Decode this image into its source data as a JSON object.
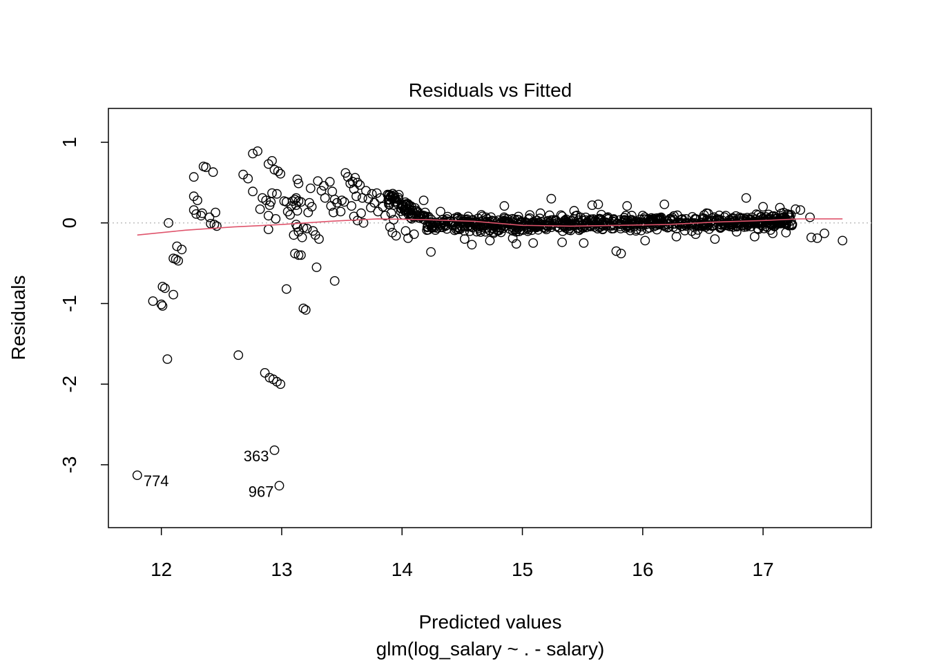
{
  "chart_data": {
    "type": "scatter",
    "title": "Residuals vs Fitted",
    "xlabel": "Predicted values",
    "xlabel_sub": "glm(log_salary ~ . - salary)",
    "ylabel": "Residuals",
    "xlim": [
      11.56,
      17.9
    ],
    "ylim": [
      -3.78,
      1.42
    ],
    "x_ticks": [
      12,
      13,
      14,
      15,
      16,
      17
    ],
    "x_tick_labels": [
      "12",
      "13",
      "14",
      "15",
      "16",
      "17"
    ],
    "y_ticks": [
      -3,
      -2,
      -1,
      0,
      1
    ],
    "y_tick_labels": [
      "-3",
      "-2",
      "-1",
      "0",
      "1"
    ],
    "reference_line_y": 0,
    "colors": {
      "points": "#000000",
      "smooth": "#DF536B",
      "reference": "#BEBEBE"
    },
    "points": [
      [
        11.8,
        -3.13
      ],
      [
        12.94,
        -2.82
      ],
      [
        12.98,
        -3.26
      ],
      [
        11.93,
        -0.97
      ],
      [
        12.0,
        -1.01
      ],
      [
        12.01,
        -1.03
      ],
      [
        12.01,
        -0.79
      ],
      [
        12.03,
        -0.81
      ],
      [
        12.1,
        -0.89
      ],
      [
        12.05,
        -1.69
      ],
      [
        12.06,
        0.0
      ],
      [
        12.1,
        -0.44
      ],
      [
        12.12,
        -0.45
      ],
      [
        12.14,
        -0.47
      ],
      [
        12.13,
        -0.29
      ],
      [
        12.17,
        -0.33
      ],
      [
        12.27,
        0.57
      ],
      [
        12.27,
        0.33
      ],
      [
        12.27,
        0.16
      ],
      [
        12.3,
        0.28
      ],
      [
        12.29,
        0.11
      ],
      [
        12.33,
        0.09
      ],
      [
        12.35,
        0.7
      ],
      [
        12.37,
        0.69
      ],
      [
        12.34,
        0.12
      ],
      [
        12.4,
        0.07
      ],
      [
        12.41,
        -0.01
      ],
      [
        12.43,
        0.63
      ],
      [
        12.45,
        0.13
      ],
      [
        12.44,
        -0.02
      ],
      [
        12.46,
        -0.04
      ],
      [
        12.64,
        -1.64
      ],
      [
        12.68,
        0.6
      ],
      [
        12.72,
        0.55
      ],
      [
        12.76,
        0.86
      ],
      [
        12.8,
        0.89
      ],
      [
        12.76,
        0.39
      ],
      [
        12.82,
        0.17
      ],
      [
        12.84,
        0.31
      ],
      [
        12.87,
        0.28
      ],
      [
        12.86,
        -1.86
      ],
      [
        12.89,
        0.73
      ],
      [
        12.91,
        0.26
      ],
      [
        12.9,
        -1.92
      ],
      [
        12.93,
        -1.94
      ],
      [
        12.96,
        -1.97
      ],
      [
        12.99,
        -2.0
      ],
      [
        12.92,
        0.77
      ],
      [
        12.94,
        0.66
      ],
      [
        12.97,
        0.64
      ],
      [
        12.99,
        0.61
      ],
      [
        12.92,
        0.37
      ],
      [
        12.96,
        0.36
      ],
      [
        12.9,
        0.22
      ],
      [
        12.89,
        0.09
      ],
      [
        12.95,
        0.05
      ],
      [
        12.89,
        -0.08
      ],
      [
        13.02,
        0.27
      ],
      [
        13.04,
        0.26
      ],
      [
        13.05,
        0.14
      ],
      [
        13.07,
        0.1
      ],
      [
        13.08,
        0.21
      ],
      [
        13.04,
        -0.82
      ],
      [
        13.09,
        0.27
      ],
      [
        13.11,
        0.29
      ],
      [
        13.12,
        0.22
      ],
      [
        13.13,
        0.15
      ],
      [
        13.1,
        -0.15
      ],
      [
        13.12,
        -0.02
      ],
      [
        13.13,
        -0.05
      ],
      [
        13.14,
        -0.11
      ],
      [
        13.11,
        -0.38
      ],
      [
        13.14,
        -0.4
      ],
      [
        13.16,
        -0.4
      ],
      [
        13.13,
        0.54
      ],
      [
        13.14,
        0.49
      ],
      [
        13.12,
        0.31
      ],
      [
        13.14,
        0.27
      ],
      [
        13.16,
        0.26
      ],
      [
        13.17,
        -0.18
      ],
      [
        13.18,
        -1.06
      ],
      [
        13.2,
        -1.08
      ],
      [
        13.18,
        -0.06
      ],
      [
        13.21,
        -0.07
      ],
      [
        13.23,
        0.25
      ],
      [
        13.25,
        0.2
      ],
      [
        13.22,
        0.13
      ],
      [
        13.24,
        0.43
      ],
      [
        13.26,
        -0.1
      ],
      [
        13.28,
        -0.15
      ],
      [
        13.31,
        -0.2
      ],
      [
        13.29,
        -0.55
      ],
      [
        13.3,
        0.52
      ],
      [
        13.33,
        0.4
      ],
      [
        13.35,
        0.46
      ],
      [
        13.36,
        0.31
      ],
      [
        13.4,
        0.51
      ],
      [
        13.42,
        0.39
      ],
      [
        13.44,
        0.29
      ],
      [
        13.43,
        0.13
      ],
      [
        13.41,
        0.21
      ],
      [
        13.44,
        -0.72
      ],
      [
        13.46,
        0.25
      ],
      [
        13.5,
        0.28
      ],
      [
        13.52,
        0.26
      ],
      [
        13.49,
        0.14
      ],
      [
        13.53,
        0.62
      ],
      [
        13.55,
        0.57
      ],
      [
        13.57,
        0.49
      ],
      [
        13.59,
        0.51
      ],
      [
        13.61,
        0.56
      ],
      [
        13.6,
        0.42
      ],
      [
        13.63,
        0.5
      ],
      [
        13.65,
        0.47
      ],
      [
        13.62,
        0.33
      ],
      [
        13.67,
        0.31
      ],
      [
        13.58,
        0.21
      ],
      [
        13.6,
        0.08
      ],
      [
        13.63,
        0.03
      ],
      [
        13.66,
        0.12
      ],
      [
        13.68,
        0.0
      ],
      [
        13.7,
        0.4
      ],
      [
        13.72,
        0.3
      ],
      [
        13.75,
        0.36
      ],
      [
        13.74,
        0.19
      ],
      [
        13.77,
        0.25
      ],
      [
        13.79,
        0.37
      ],
      [
        13.8,
        0.14
      ],
      [
        13.82,
        0.31
      ],
      [
        13.84,
        0.2
      ],
      [
        13.86,
        0.09
      ],
      [
        13.88,
        0.35
      ],
      [
        13.89,
        0.23
      ],
      [
        13.91,
        0.12
      ],
      [
        13.93,
        0.04
      ],
      [
        13.9,
        -0.05
      ],
      [
        13.92,
        -0.12
      ],
      [
        13.95,
        -0.16
      ],
      [
        13.97,
        0.29
      ],
      [
        13.99,
        0.18
      ],
      [
        14.01,
        0.1
      ],
      [
        14.03,
        -0.1
      ],
      [
        14.06,
        0.22
      ],
      [
        14.08,
        0.05
      ],
      [
        14.1,
        -0.14
      ],
      [
        14.05,
        -0.19
      ],
      [
        14.18,
        0.28
      ],
      [
        14.24,
        -0.36
      ],
      [
        14.32,
        0.14
      ],
      [
        14.38,
        0.02
      ],
      [
        14.45,
        -0.08
      ],
      [
        14.52,
        -0.2
      ],
      [
        14.58,
        -0.27
      ],
      [
        14.66,
        0.1
      ],
      [
        14.73,
        -0.22
      ],
      [
        14.79,
        -0.09
      ],
      [
        14.85,
        0.21
      ],
      [
        14.92,
        -0.19
      ],
      [
        14.95,
        -0.26
      ],
      [
        15.04,
        -0.05
      ],
      [
        15.09,
        -0.25
      ],
      [
        15.15,
        0.12
      ],
      [
        15.24,
        0.3
      ],
      [
        15.33,
        -0.24
      ],
      [
        15.43,
        0.15
      ],
      [
        15.51,
        -0.25
      ],
      [
        15.58,
        0.22
      ],
      [
        15.63,
        0.23
      ],
      [
        15.7,
        0.06
      ],
      [
        15.78,
        -0.35
      ],
      [
        15.82,
        -0.38
      ],
      [
        15.87,
        0.21
      ],
      [
        15.95,
        -0.08
      ],
      [
        16.02,
        -0.22
      ],
      [
        16.12,
        0.06
      ],
      [
        16.18,
        0.23
      ],
      [
        16.28,
        -0.17
      ],
      [
        16.36,
        0.05
      ],
      [
        16.44,
        -0.14
      ],
      [
        16.53,
        0.12
      ],
      [
        16.6,
        -0.2
      ],
      [
        16.69,
        0.09
      ],
      [
        16.78,
        -0.11
      ],
      [
        16.86,
        0.31
      ],
      [
        16.93,
        -0.17
      ],
      [
        17.0,
        0.2
      ],
      [
        17.08,
        -0.13
      ],
      [
        17.14,
        0.19
      ],
      [
        17.19,
        -0.12
      ],
      [
        17.27,
        0.17
      ],
      [
        17.31,
        0.16
      ],
      [
        17.39,
        0.07
      ],
      [
        17.4,
        -0.18
      ],
      [
        17.45,
        -0.19
      ],
      [
        17.51,
        -0.13
      ],
      [
        17.66,
        -0.22
      ]
    ],
    "bulk_region": {
      "x_start": 13.88,
      "x_end": 17.25
    },
    "smooth_line": [
      [
        11.8,
        -0.15
      ],
      [
        12.2,
        -0.09
      ],
      [
        12.6,
        -0.05
      ],
      [
        13.0,
        -0.02
      ],
      [
        13.4,
        0.02
      ],
      [
        13.8,
        0.05
      ],
      [
        14.2,
        0.04
      ],
      [
        14.6,
        0.02
      ],
      [
        15.0,
        -0.03
      ],
      [
        15.4,
        -0.04
      ],
      [
        15.8,
        -0.03
      ],
      [
        16.2,
        -0.02
      ],
      [
        16.6,
        0.01
      ],
      [
        17.0,
        0.03
      ],
      [
        17.3,
        0.05
      ],
      [
        17.66,
        0.05
      ]
    ],
    "point_labels": [
      {
        "text": "774",
        "x": 11.8,
        "y": -3.13,
        "side": "right"
      },
      {
        "text": "363",
        "x": 12.94,
        "y": -2.82,
        "side": "left"
      },
      {
        "text": "967",
        "x": 12.98,
        "y": -3.26,
        "side": "left"
      }
    ]
  }
}
